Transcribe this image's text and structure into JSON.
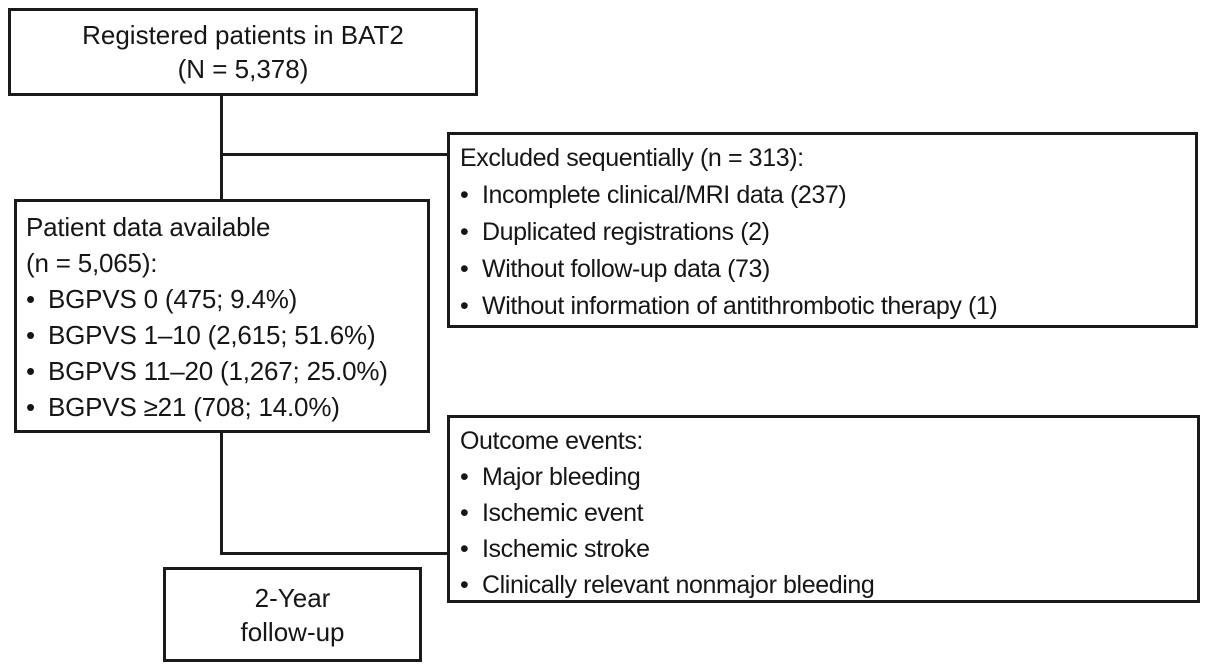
{
  "figure": {
    "background_color": "#ffffff",
    "line_color": "#1a1a1a",
    "text_color": "#161616"
  },
  "bullet": "•",
  "boxes": {
    "registered": {
      "line1": "Registered patients in BAT2",
      "line2": "(N = 5,378)"
    },
    "excluded": {
      "title": "Excluded sequentially (n = 313):",
      "items": [
        "Incomplete clinical/MRI data (237)",
        "Duplicated registrations (2)",
        "Without follow-up data (73)",
        "Without information of antithrombotic therapy (1)"
      ]
    },
    "available": {
      "line1": "Patient data available",
      "line2": "(n = 5,065):",
      "items": [
        "BGPVS 0 (475; 9.4%)",
        "BGPVS 1–10 (2,615; 51.6%)",
        "BGPVS 11–20 (1,267; 25.0%)",
        "BGPVS ≥21 (708; 14.0%)"
      ]
    },
    "outcome": {
      "title": "Outcome events:",
      "items": [
        "Major bleeding",
        "Ischemic event",
        "Ischemic stroke",
        "Clinically relevant nonmajor bleeding"
      ]
    },
    "followup": {
      "line1": "2-Year",
      "line2": "follow-up"
    }
  }
}
